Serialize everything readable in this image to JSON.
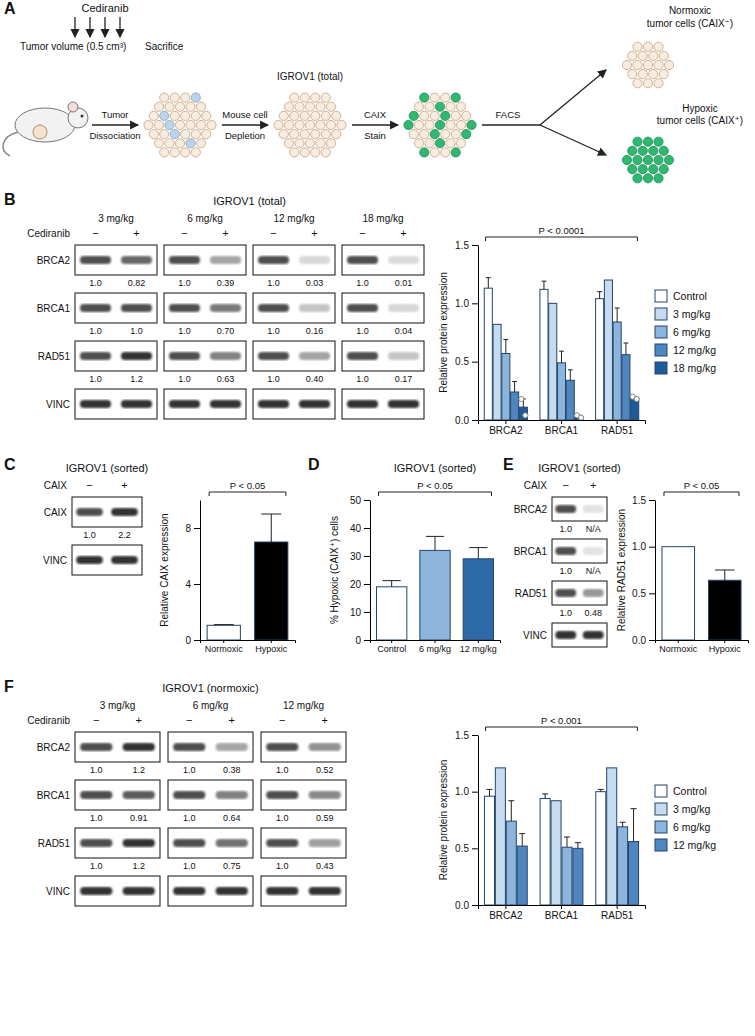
{
  "chart_data": [
    {
      "type": "bar",
      "y_label": "Relative protein expression",
      "categories": [
        "BRCA2",
        "BRCA1",
        "RAD51"
      ],
      "series": [
        {
          "name": "Control",
          "color": "#ffffff",
          "values": [
            1.13,
            1.12,
            1.04
          ],
          "errors": [
            0.09,
            0.07,
            0.06
          ]
        },
        {
          "name": "3 mg/kg",
          "color": "#c6dbef",
          "values": [
            0.82,
            1.0,
            1.2
          ]
        },
        {
          "name": "6 mg/kg",
          "color": "#8db5dc",
          "values": [
            0.57,
            0.49,
            0.84
          ],
          "errors": [
            0.12,
            0.1,
            0.12
          ]
        },
        {
          "name": "12 mg/kg",
          "color": "#4f86c0",
          "values": [
            0.24,
            0.34,
            0.56
          ],
          "errors": [
            0.09,
            0.09,
            0.1
          ]
        },
        {
          "name": "18 mg/kg",
          "color": "#1f5a99",
          "values": [
            0.11,
            0.03,
            0.19
          ],
          "errors": [
            0.07,
            0.01,
            0.01
          ],
          "points": [
            [
              0.18,
              0.04
            ],
            [
              0.04,
              0.02
            ],
            [
              0.2,
              0.18
            ]
          ]
        }
      ],
      "ylim": [
        0,
        1.5
      ],
      "yticks": [
        {
          "value": 0,
          "label": "0.0"
        },
        {
          "value": 0.5,
          "label": "0.5"
        },
        {
          "value": 1,
          "label": "1.0"
        },
        {
          "value": 1.5,
          "label": "1.5"
        }
      ],
      "annotations": [
        "P < 0.0001"
      ],
      "legend": "right"
    },
    {
      "type": "bar",
      "y_label": "Relative CAIX expression",
      "categories": [
        "Normoxic",
        "Hypoxic"
      ],
      "values": [
        1.05,
        7.0
      ],
      "errors": [
        0.05,
        2.0
      ],
      "colors": [
        "#ffffff",
        "#000000"
      ],
      "ylim": [
        0,
        10
      ],
      "yticks": [
        0,
        4,
        8
      ],
      "annotations": [
        "P < 0.05"
      ]
    },
    {
      "type": "bar",
      "title": "IGROV1 (sorted)",
      "y_label": "% Hypoxic (CAIX⁺) cells",
      "categories": [
        "Control",
        "6 mg/kg",
        "12 mg/kg"
      ],
      "values": [
        19,
        32,
        29
      ],
      "errors": [
        2.2,
        5,
        4
      ],
      "colors": [
        "#ffffff",
        "#8db5dc",
        "#2f6aa8"
      ],
      "ylim": [
        0,
        50
      ],
      "yticks": [
        0,
        10,
        20,
        30,
        40,
        50
      ],
      "annotations": [
        "P < 0.05"
      ]
    },
    {
      "type": "bar",
      "y_label": "Relative RAD51 expression",
      "categories": [
        "Normoxic",
        "Hypoxic"
      ],
      "values": [
        1.0,
        0.64
      ],
      "errors": [
        null,
        0.11
      ],
      "colors": [
        "#ffffff",
        "#000000"
      ],
      "ylim": [
        0,
        1.5
      ],
      "yticks": [
        {
          "value": 0,
          "label": "0.0"
        },
        {
          "value": 0.5,
          "label": "0.5"
        },
        {
          "value": 1,
          "label": "1.0"
        },
        {
          "value": 1.5,
          "label": "1.5"
        }
      ],
      "annotations": [
        "P < 0.05"
      ]
    },
    {
      "type": "bar",
      "y_label": "Relative protein expression",
      "categories": [
        "BRCA2",
        "BRCA1",
        "RAD51"
      ],
      "series": [
        {
          "name": "Control",
          "color": "#ffffff",
          "values": [
            0.96,
            0.94,
            1.0
          ],
          "errors": [
            0.06,
            0.04,
            0.02
          ]
        },
        {
          "name": "3 mg/kg",
          "color": "#c6dbef",
          "values": [
            1.21,
            0.92,
            1.21
          ]
        },
        {
          "name": "6 mg/kg",
          "color": "#8db5dc",
          "values": [
            0.74,
            0.51,
            0.69
          ],
          "errors": [
            0.18,
            0.09,
            0.04
          ]
        },
        {
          "name": "12 mg/kg",
          "color": "#4f86c0",
          "values": [
            0.52,
            0.5,
            0.56
          ],
          "errors": [
            0.11,
            0.05,
            0.29
          ]
        }
      ],
      "ylim": [
        0,
        1.5
      ],
      "yticks": [
        {
          "value": 0,
          "label": "0.0"
        },
        {
          "value": 0.5,
          "label": "0.5"
        },
        {
          "value": 1,
          "label": "1.0"
        },
        {
          "value": 1.5,
          "label": "1.5"
        }
      ],
      "annotations": [
        "P < 0.001"
      ],
      "legend": "right"
    }
  ],
  "panel_labels": [
    "A",
    "B",
    "C",
    "D",
    "E",
    "F"
  ],
  "diagram": {
    "treatment": "Cediranib",
    "timeline": [
      "Tumor volume (0.5 cm³)",
      "Sacrifice"
    ],
    "steps": [
      {
        "label": [
          "Tumor",
          "Dissociation"
        ]
      },
      {
        "label": [
          "Mouse cell",
          "Depletion"
        ]
      },
      {
        "label": [
          "CAIX",
          "Stain"
        ]
      },
      {
        "label": [
          "FACS"
        ]
      }
    ],
    "populations": [
      {
        "label": [
          "IGROV1 (total)"
        ]
      },
      {
        "label": [
          "Normoxic",
          "tumor cells (CAIX⁻)"
        ]
      },
      {
        "label": [
          "Hypoxic",
          "tumor cells (CAIX⁺)"
        ]
      }
    ]
  },
  "blots": [
    {
      "title": "IGROV1 (total)",
      "lane_label": "Cediranib",
      "groups": [
        {
          "header": "3 mg/kg",
          "lanes": [
            "−",
            "+"
          ]
        },
        {
          "header": "6 mg/kg",
          "lanes": [
            "−",
            "+"
          ]
        },
        {
          "header": "12 mg/kg",
          "lanes": [
            "−",
            "+"
          ]
        },
        {
          "header": "18 mg/kg",
          "lanes": [
            "−",
            "+"
          ]
        }
      ],
      "rows": [
        {
          "name": "BRCA2",
          "labels": [
            [
              "1.0",
              "0.82"
            ],
            [
              "1.0",
              "0.39"
            ],
            [
              "1.0",
              "0.03"
            ],
            [
              "1.0",
              "0.01"
            ]
          ]
        },
        {
          "name": "BRCA1",
          "labels": [
            [
              "1.0",
              "1.0"
            ],
            [
              "1.0",
              "0.70"
            ],
            [
              "1.0",
              "0.16"
            ],
            [
              "1.0",
              "0.04"
            ]
          ]
        },
        {
          "name": "RAD51",
          "labels": [
            [
              "1.0",
              "1.2"
            ],
            [
              "1.0",
              "0.63"
            ],
            [
              "1.0",
              "0.40"
            ],
            [
              "1.0",
              "0.17"
            ]
          ]
        },
        {
          "name": "VINC"
        }
      ]
    },
    {
      "title": "IGROV1 (sorted)",
      "lane_label": "CAIX",
      "groups": [
        {
          "lanes": [
            "−",
            "+"
          ]
        }
      ],
      "rows": [
        {
          "name": "CAIX",
          "labels": [
            [
              "1.0",
              "2.2"
            ]
          ]
        },
        {
          "name": "VINC"
        }
      ]
    },
    {
      "title": "IGROV1 (sorted)",
      "lane_label": "CAIX",
      "groups": [
        {
          "lanes": [
            "−",
            "+"
          ]
        }
      ],
      "rows": [
        {
          "name": "BRCA2",
          "labels": [
            [
              "1.0",
              "N/A"
            ]
          ]
        },
        {
          "name": "BRCA1",
          "labels": [
            [
              "1.0",
              "N/A"
            ]
          ]
        },
        {
          "name": "RAD51",
          "labels": [
            [
              "1.0",
              "0.48"
            ]
          ]
        },
        {
          "name": "VINC"
        }
      ]
    },
    {
      "title": "IGROV1 (normoxic)",
      "lane_label": "Cediranib",
      "groups": [
        {
          "header": "3 mg/kg",
          "lanes": [
            "−",
            "+"
          ]
        },
        {
          "header": "6 mg/kg",
          "lanes": [
            "−",
            "+"
          ]
        },
        {
          "header": "12 mg/kg",
          "lanes": [
            "−",
            "+"
          ]
        }
      ],
      "rows": [
        {
          "name": "BRCA2",
          "labels": [
            [
              "1.0",
              "1.2"
            ],
            [
              "1.0",
              "0.38"
            ],
            [
              "1.0",
              "0.52"
            ]
          ]
        },
        {
          "name": "BRCA1",
          "labels": [
            [
              "1.0",
              "0.91"
            ],
            [
              "1.0",
              "0.64"
            ],
            [
              "1.0",
              "0.59"
            ]
          ]
        },
        {
          "name": "RAD51",
          "labels": [
            [
              "1.0",
              "1.2"
            ],
            [
              "1.0",
              "0.75"
            ],
            [
              "1.0",
              "0.43"
            ]
          ]
        },
        {
          "name": "VINC"
        }
      ]
    }
  ]
}
